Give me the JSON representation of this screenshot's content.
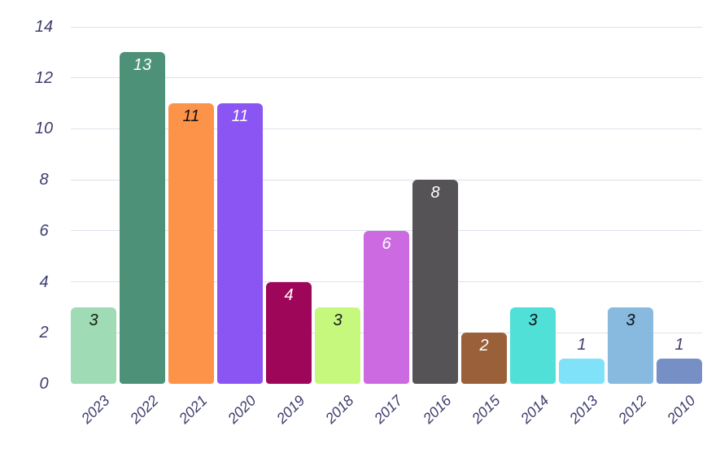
{
  "chart_data": {
    "type": "bar",
    "title": "",
    "xlabel": "",
    "ylabel": "",
    "categories": [
      "2023",
      "2022",
      "2021",
      "2020",
      "2019",
      "2018",
      "2017",
      "2016",
      "2015",
      "2014",
      "2013",
      "2012",
      "2010"
    ],
    "values": [
      3,
      13,
      11,
      11,
      4,
      3,
      6,
      8,
      2,
      3,
      1,
      3,
      1
    ],
    "bar_colors": [
      "#9fdbb4",
      "#4d9179",
      "#fd9249",
      "#8b55f3",
      "#9e0659",
      "#c6f87e",
      "#cc6be1",
      "#555356",
      "#9a6039",
      "#50e0d8",
      "#80e2f9",
      "#87bade",
      "#7690c5"
    ],
    "value_label_colors": [
      "#1b1b1b",
      "#ffffff",
      "#111111",
      "#ffffff",
      "#ffffff",
      "#1b1b1b",
      "#ffffff",
      "#ffffff",
      "#ffffff",
      "#111111",
      "#3d3d6e",
      "#111111",
      "#3d3d6e"
    ],
    "value_label_placement": [
      "inside",
      "inside",
      "inside",
      "inside",
      "inside",
      "inside",
      "inside",
      "inside",
      "inside",
      "inside",
      "above",
      "inside",
      "above"
    ],
    "y_ticks": [
      0,
      2,
      4,
      6,
      8,
      10,
      12,
      14
    ],
    "ylim": [
      0,
      14
    ],
    "grid": "horizontal",
    "legend": "none",
    "colors": {
      "axis_label": "#3d3d6e",
      "gridline": "#dde1ea",
      "background": "#ffffff"
    }
  }
}
